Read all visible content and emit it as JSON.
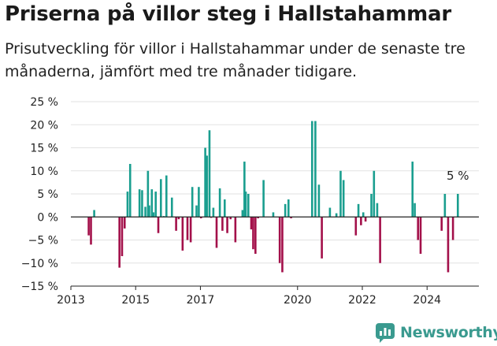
{
  "chart_data": {
    "type": "bar",
    "title": "Priserna på villor steg i Hallstahammar",
    "subtitle": "Prisutveckling för villor i Hallstahammar under de senaste tre månaderna, jämfört med tre månader tidigare.",
    "xlabel": "",
    "ylabel": "",
    "ylim": [
      -15,
      25
    ],
    "xlim": [
      2013.0,
      2025.6
    ],
    "y_ticks": [
      -15,
      -10,
      -5,
      0,
      5,
      10,
      15,
      20,
      25
    ],
    "y_tick_labels": [
      "−15 %",
      "−10 %",
      "−5 %",
      "0 %",
      "5 %",
      "10 %",
      "15 %",
      "20 %",
      "25 %"
    ],
    "x_ticks": [
      2013,
      2015,
      2017,
      2020,
      2022,
      2024
    ],
    "x_tick_labels": [
      "2013",
      "2015",
      "2017",
      "2020",
      "2022",
      "2024"
    ],
    "grid": true,
    "positive_color": "#1a9e8f",
    "negative_color": "#a3104a",
    "annotation": {
      "text": "5 %",
      "x": 2024.95,
      "y": 5
    },
    "series": [
      {
        "name": "Prisutveckling",
        "x": [
          2013.55,
          2013.62,
          2013.72,
          2014.5,
          2014.58,
          2014.66,
          2014.75,
          2014.83,
          2015.12,
          2015.2,
          2015.3,
          2015.38,
          2015.42,
          2015.5,
          2015.55,
          2015.62,
          2015.7,
          2015.78,
          2015.87,
          2015.95,
          2016.12,
          2016.25,
          2016.33,
          2016.45,
          2016.6,
          2016.7,
          2016.75,
          2016.88,
          2016.95,
          2017.02,
          2017.15,
          2017.2,
          2017.28,
          2017.33,
          2017.4,
          2017.5,
          2017.6,
          2017.68,
          2017.75,
          2017.83,
          2017.93,
          2018.08,
          2018.3,
          2018.36,
          2018.4,
          2018.48,
          2018.57,
          2018.63,
          2018.7,
          2018.78,
          2018.95,
          2019.25,
          2019.45,
          2019.53,
          2019.62,
          2019.72,
          2019.8,
          2020.45,
          2020.55,
          2020.66,
          2020.75,
          2021.0,
          2021.2,
          2021.33,
          2021.42,
          2021.8,
          2021.88,
          2021.96,
          2022.03,
          2022.1,
          2022.28,
          2022.36,
          2022.46,
          2022.55,
          2023.55,
          2023.62,
          2023.72,
          2023.8,
          2024.45,
          2024.55,
          2024.65,
          2024.8,
          2024.95
        ],
        "values": [
          -4,
          -6,
          1.5,
          -11,
          -8.5,
          -2.5,
          5.5,
          11.5,
          6,
          5.8,
          2.2,
          10,
          2.5,
          6,
          1,
          5.5,
          -3.5,
          8.2,
          0.2,
          9,
          4.2,
          -3,
          -0.5,
          -7.3,
          -5,
          -5.5,
          6.5,
          2.5,
          6.5,
          -0.3,
          15,
          13.3,
          18.8,
          -0.2,
          2,
          -6.7,
          6.2,
          -3,
          3.8,
          -3.5,
          -0.5,
          -5.5,
          1.5,
          12,
          5.5,
          5,
          -2.7,
          -7,
          -8,
          -0.3,
          8,
          1,
          -10,
          -12,
          2.8,
          3.8,
          -0.3,
          20.8,
          20.8,
          7,
          -9,
          2,
          0.8,
          10,
          8,
          -4,
          2.8,
          -1.8,
          1,
          -1,
          5,
          10,
          3,
          -10,
          12,
          3,
          -5,
          -8,
          -3,
          5,
          -12,
          -5,
          5
        ]
      }
    ]
  },
  "brand": {
    "name": "Newsworthy"
  }
}
